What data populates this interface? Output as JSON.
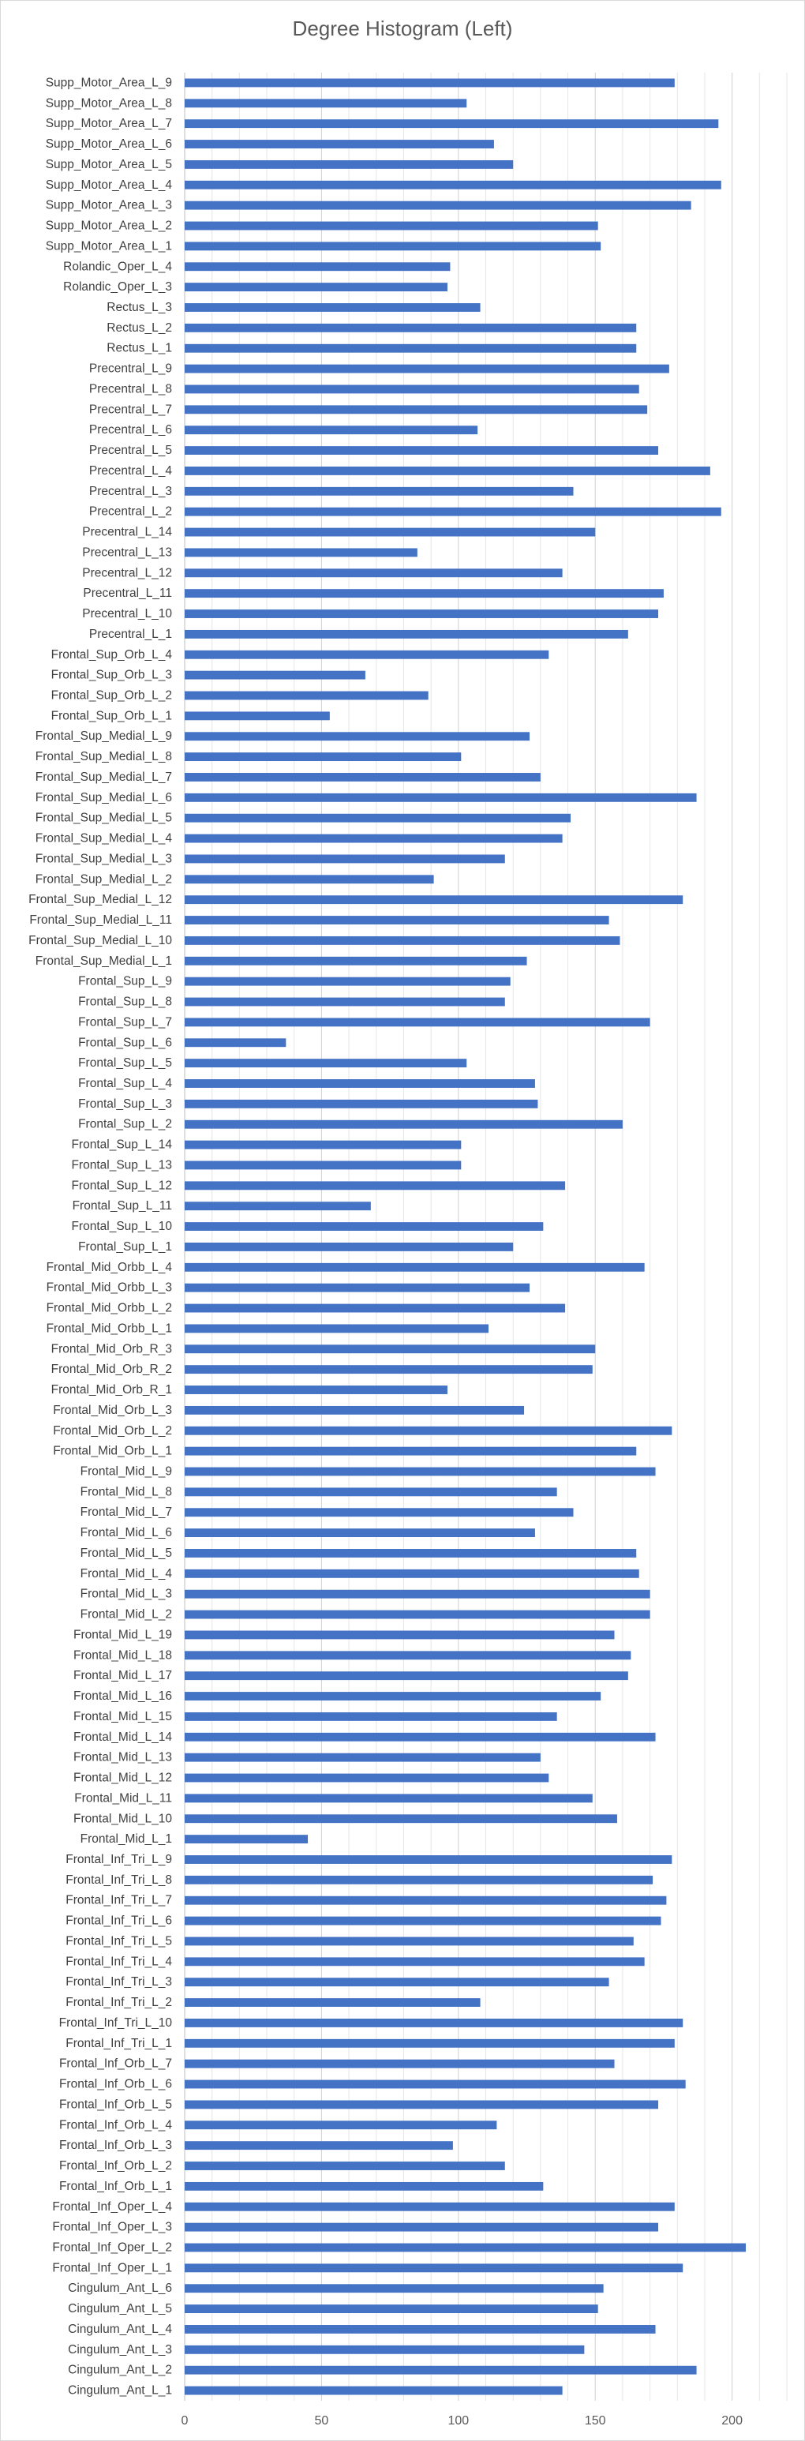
{
  "chart_data": {
    "type": "bar",
    "orientation": "horizontal",
    "title": "Degree Histogram (Left)",
    "xlabel": "",
    "ylabel": "",
    "xlim": [
      0,
      220
    ],
    "xticks": [
      0,
      50,
      100,
      150,
      200
    ],
    "grid": true,
    "legend": "none",
    "bar_color": "#4472C4",
    "categories": [
      "Cingulum_Ant_L_1",
      "Cingulum_Ant_L_2",
      "Cingulum_Ant_L_3",
      "Cingulum_Ant_L_4",
      "Cingulum_Ant_L_5",
      "Cingulum_Ant_L_6",
      "Frontal_Inf_Oper_L_1",
      "Frontal_Inf_Oper_L_2",
      "Frontal_Inf_Oper_L_3",
      "Frontal_Inf_Oper_L_4",
      "Frontal_Inf_Orb_L_1",
      "Frontal_Inf_Orb_L_2",
      "Frontal_Inf_Orb_L_3",
      "Frontal_Inf_Orb_L_4",
      "Frontal_Inf_Orb_L_5",
      "Frontal_Inf_Orb_L_6",
      "Frontal_Inf_Orb_L_7",
      "Frontal_Inf_Tri_L_1",
      "Frontal_Inf_Tri_L_10",
      "Frontal_Inf_Tri_L_2",
      "Frontal_Inf_Tri_L_3",
      "Frontal_Inf_Tri_L_4",
      "Frontal_Inf_Tri_L_5",
      "Frontal_Inf_Tri_L_6",
      "Frontal_Inf_Tri_L_7",
      "Frontal_Inf_Tri_L_8",
      "Frontal_Inf_Tri_L_9",
      "Frontal_Mid_L_1",
      "Frontal_Mid_L_10",
      "Frontal_Mid_L_11",
      "Frontal_Mid_L_12",
      "Frontal_Mid_L_13",
      "Frontal_Mid_L_14",
      "Frontal_Mid_L_15",
      "Frontal_Mid_L_16",
      "Frontal_Mid_L_17",
      "Frontal_Mid_L_18",
      "Frontal_Mid_L_19",
      "Frontal_Mid_L_2",
      "Frontal_Mid_L_3",
      "Frontal_Mid_L_4",
      "Frontal_Mid_L_5",
      "Frontal_Mid_L_6",
      "Frontal_Mid_L_7",
      "Frontal_Mid_L_8",
      "Frontal_Mid_L_9",
      "Frontal_Mid_Orb_L_1",
      "Frontal_Mid_Orb_L_2",
      "Frontal_Mid_Orb_L_3",
      "Frontal_Mid_Orb_R_1",
      "Frontal_Mid_Orb_R_2",
      "Frontal_Mid_Orb_R_3",
      "Frontal_Mid_Orbb_L_1",
      "Frontal_Mid_Orbb_L_2",
      "Frontal_Mid_Orbb_L_3",
      "Frontal_Mid_Orbb_L_4",
      "Frontal_Sup_L_1",
      "Frontal_Sup_L_10",
      "Frontal_Sup_L_11",
      "Frontal_Sup_L_12",
      "Frontal_Sup_L_13",
      "Frontal_Sup_L_14",
      "Frontal_Sup_L_2",
      "Frontal_Sup_L_3",
      "Frontal_Sup_L_4",
      "Frontal_Sup_L_5",
      "Frontal_Sup_L_6",
      "Frontal_Sup_L_7",
      "Frontal_Sup_L_8",
      "Frontal_Sup_L_9",
      "Frontal_Sup_Medial_L_1",
      "Frontal_Sup_Medial_L_10",
      "Frontal_Sup_Medial_L_11",
      "Frontal_Sup_Medial_L_12",
      "Frontal_Sup_Medial_L_2",
      "Frontal_Sup_Medial_L_3",
      "Frontal_Sup_Medial_L_4",
      "Frontal_Sup_Medial_L_5",
      "Frontal_Sup_Medial_L_6",
      "Frontal_Sup_Medial_L_7",
      "Frontal_Sup_Medial_L_8",
      "Frontal_Sup_Medial_L_9",
      "Frontal_Sup_Orb_L_1",
      "Frontal_Sup_Orb_L_2",
      "Frontal_Sup_Orb_L_3",
      "Frontal_Sup_Orb_L_4",
      "Precentral_L_1",
      "Precentral_L_10",
      "Precentral_L_11",
      "Precentral_L_12",
      "Precentral_L_13",
      "Precentral_L_14",
      "Precentral_L_2",
      "Precentral_L_3",
      "Precentral_L_4",
      "Precentral_L_5",
      "Precentral_L_6",
      "Precentral_L_7",
      "Precentral_L_8",
      "Precentral_L_9",
      "Rectus_L_1",
      "Rectus_L_2",
      "Rectus_L_3",
      "Rolandic_Oper_L_3",
      "Rolandic_Oper_L_4",
      "Supp_Motor_Area_L_1",
      "Supp_Motor_Area_L_2",
      "Supp_Motor_Area_L_3",
      "Supp_Motor_Area_L_4",
      "Supp_Motor_Area_L_5",
      "Supp_Motor_Area_L_6",
      "Supp_Motor_Area_L_7",
      "Supp_Motor_Area_L_8",
      "Supp_Motor_Area_L_9"
    ],
    "values": [
      138,
      187,
      146,
      172,
      151,
      153,
      182,
      205,
      173,
      179,
      131,
      117,
      98,
      114,
      173,
      183,
      157,
      179,
      182,
      108,
      155,
      168,
      164,
      174,
      176,
      171,
      178,
      45,
      158,
      149,
      133,
      130,
      172,
      136,
      152,
      162,
      163,
      157,
      170,
      170,
      166,
      165,
      128,
      142,
      136,
      172,
      165,
      178,
      124,
      96,
      149,
      150,
      111,
      139,
      126,
      168,
      120,
      131,
      68,
      139,
      101,
      101,
      160,
      129,
      128,
      103,
      37,
      170,
      117,
      119,
      125,
      159,
      155,
      182,
      91,
      117,
      138,
      141,
      187,
      130,
      101,
      126,
      53,
      89,
      66,
      133,
      162,
      173,
      175,
      138,
      85,
      150,
      196,
      142,
      192,
      173,
      107,
      169,
      166,
      177,
      165,
      165,
      108,
      96,
      97,
      152,
      151,
      185,
      196,
      120,
      113,
      195,
      103,
      179
    ]
  }
}
